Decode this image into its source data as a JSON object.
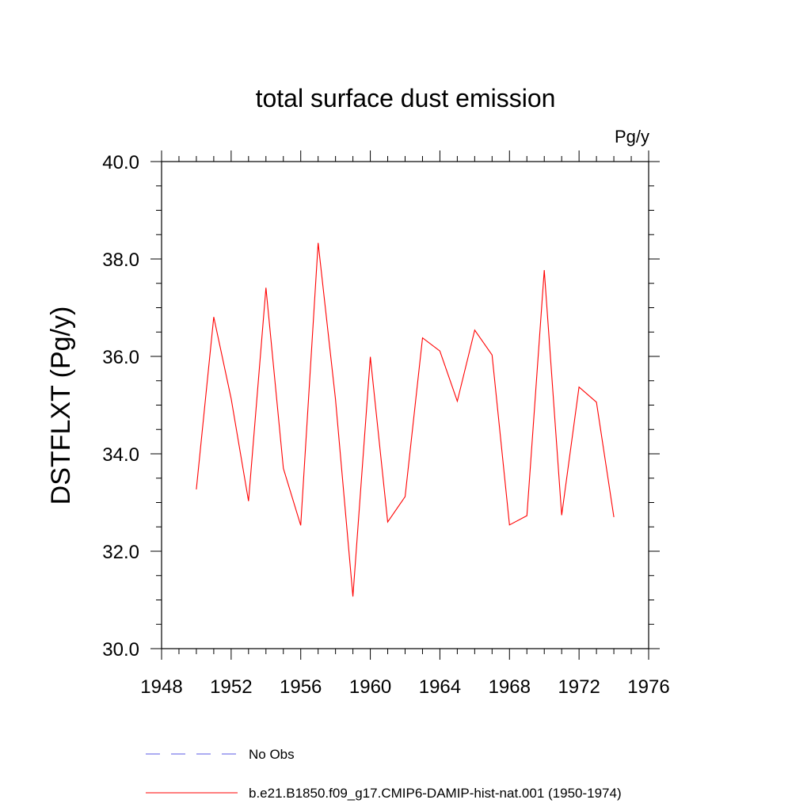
{
  "chart_data": {
    "type": "line",
    "title": "total surface dust emission",
    "units_label": "Pg/y",
    "ylabel": "DSTFLXT  (Pg/y)",
    "xlabel": "",
    "xlim": [
      1948,
      1976
    ],
    "ylim": [
      30,
      40
    ],
    "x_ticks": [
      "1948",
      "1952",
      "1956",
      "1960",
      "1964",
      "1968",
      "1972",
      "1976"
    ],
    "y_ticks": [
      "30.0",
      "32.0",
      "34.0",
      "36.0",
      "38.0",
      "40.0"
    ],
    "grid": false,
    "legend_position": "bottom",
    "x": [
      1950,
      1951,
      1952,
      1953,
      1954,
      1955,
      1956,
      1957,
      1958,
      1959,
      1960,
      1961,
      1962,
      1963,
      1964,
      1965,
      1966,
      1967,
      1968,
      1969,
      1970,
      1971,
      1972,
      1973,
      1974
    ],
    "series": [
      {
        "name": "b.e21.B1850.f09_g17.CMIP6-DAMIP-hist-nat.001 (1950-1974)",
        "color": "#ff0000",
        "dash": "solid",
        "values": [
          33.27,
          36.81,
          35.13,
          33.03,
          37.41,
          33.7,
          32.53,
          38.33,
          35.12,
          31.07,
          35.99,
          32.6,
          33.12,
          36.38,
          36.11,
          35.08,
          36.54,
          36.03,
          32.54,
          32.73,
          37.77,
          32.74,
          35.37,
          35.06,
          32.7
        ]
      }
    ],
    "legend": [
      {
        "label": "No Obs",
        "color": "#5a5ae6",
        "dash": "dashed"
      },
      {
        "label": "b.e21.B1850.f09_g17.CMIP6-DAMIP-hist-nat.001 (1950-1974)",
        "color": "#ff0000",
        "dash": "solid"
      }
    ]
  }
}
